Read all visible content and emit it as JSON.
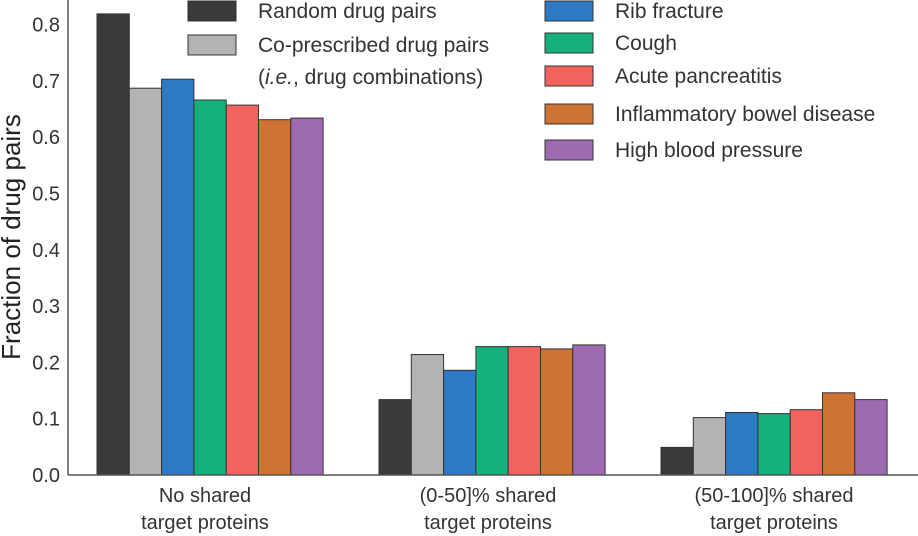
{
  "chart_data": {
    "type": "bar",
    "ylabel": "Fraction of drug pairs",
    "xlabel": "",
    "ylim": [
      0,
      0.82
    ],
    "yticks": [
      "0.0",
      "0.1",
      "0.2",
      "0.3",
      "0.4",
      "0.5",
      "0.6",
      "0.7",
      "0.8"
    ],
    "categories": [
      [
        "No shared",
        "target proteins"
      ],
      [
        "(0-50]% shared",
        "target proteins"
      ],
      [
        "(50-100]% shared",
        "target proteins"
      ]
    ],
    "series": [
      {
        "name": "Random drug pairs",
        "color": "#3a3a3a",
        "values": [
          0.819,
          0.134,
          0.049
        ]
      },
      {
        "name": "Co-prescribed drug pairs",
        "name_line2_italic": "i.e.",
        "name_line2_rest": ", drug combinations)",
        "name_line2_open": "(",
        "color": "#b3b3b3",
        "values": [
          0.687,
          0.214,
          0.102
        ]
      },
      {
        "name": "Rib fracture",
        "color": "#2c79c4",
        "values": [
          0.703,
          0.186,
          0.111
        ]
      },
      {
        "name": "Cough",
        "color": "#15b07c",
        "values": [
          0.666,
          0.228,
          0.109
        ]
      },
      {
        "name": "Acute pancreatitis",
        "color": "#f2625e",
        "values": [
          0.657,
          0.228,
          0.116
        ]
      },
      {
        "name": "Inflammatory bowel disease",
        "color": "#cd7333",
        "values": [
          0.631,
          0.224,
          0.146
        ]
      },
      {
        "name": "High blood pressure",
        "color": "#9e6ab1",
        "values": [
          0.634,
          0.231,
          0.134
        ]
      }
    ],
    "legend": "top-right, two columns",
    "grid": false
  }
}
